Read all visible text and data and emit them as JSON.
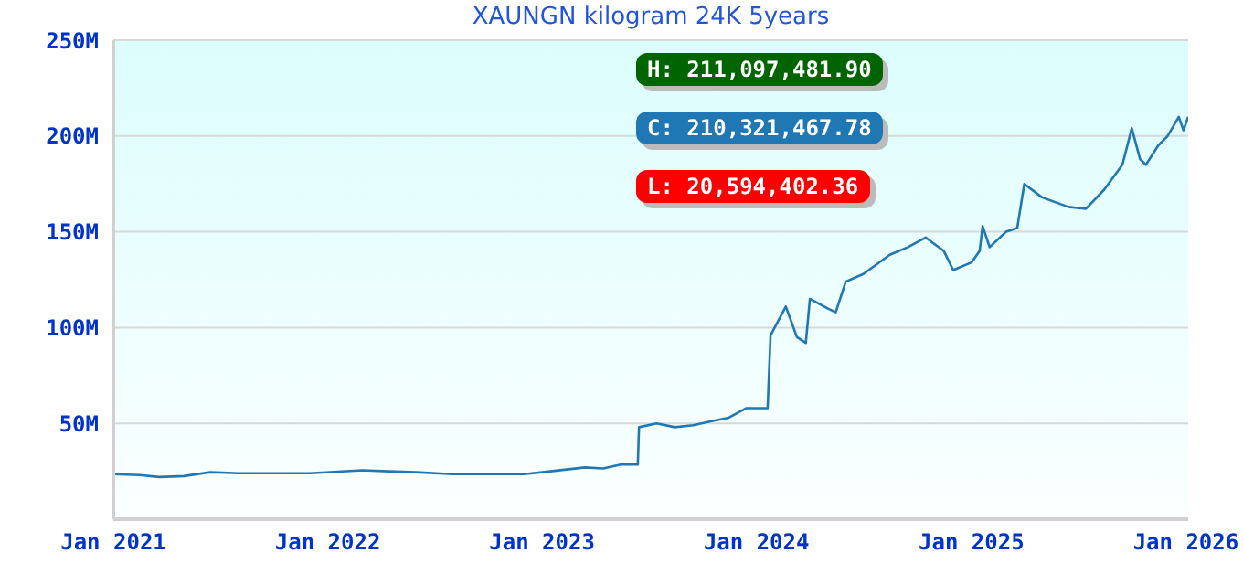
{
  "chart_data": {
    "type": "line",
    "title": "XAUNGN kilogram 24K 5years",
    "annotations": [
      "H: 211,097,481.90",
      "C: 210,321,467.78",
      "L: 20,594,402.36"
    ],
    "x": [
      "2021-01-01",
      "2021-02-15",
      "2021-03-20",
      "2021-05-01",
      "2021-06-15",
      "2021-08-01",
      "2021-10-01",
      "2021-12-01",
      "2022-03-01",
      "2022-04-15",
      "2022-06-01",
      "2022-08-01",
      "2022-10-01",
      "2022-12-01",
      "2023-01-15",
      "2023-03-15",
      "2023-04-15",
      "2023-05-15",
      "2023-06-13",
      "2023-06-15",
      "2023-07-15",
      "2023-08-15",
      "2023-09-15",
      "2023-10-15",
      "2023-11-15",
      "2023-12-15",
      "2024-01-20",
      "2024-01-25",
      "2024-02-20",
      "2024-03-10",
      "2024-03-25",
      "2024-04-01",
      "2024-05-01",
      "2024-05-15",
      "2024-06-01",
      "2024-07-01",
      "2024-08-15",
      "2024-09-15",
      "2024-10-15",
      "2024-11-15",
      "2024-12-01",
      "2025-01-01",
      "2025-01-15",
      "2025-01-20",
      "2025-02-01",
      "2025-03-01",
      "2025-03-20",
      "2025-04-01",
      "2025-05-01",
      "2025-06-15",
      "2025-07-15",
      "2025-08-15",
      "2025-09-15",
      "2025-10-01",
      "2025-10-15",
      "2025-10-25",
      "2025-11-15",
      "2025-12-01",
      "2025-12-20",
      "2025-12-28",
      "2026-01-05"
    ],
    "series": [
      {
        "color": "#1f77b4",
        "values": [
          23.5,
          23,
          22,
          22.5,
          24.5,
          24,
          24,
          24,
          25.5,
          25,
          24.5,
          23.5,
          23.5,
          23.5,
          25,
          27,
          26.5,
          28.5,
          28.5,
          48,
          50,
          48,
          49,
          51,
          53,
          58,
          58,
          96,
          111,
          95,
          92,
          115,
          110,
          108,
          124,
          128,
          138,
          142,
          147,
          140,
          130,
          134,
          140,
          153,
          142,
          150,
          152,
          175,
          168,
          163,
          162,
          172,
          185,
          204,
          188,
          185,
          195,
          200,
          210,
          203,
          210
        ]
      }
    ],
    "xlim": [
      "2021-01-01",
      "2026-01-05"
    ],
    "xticks": [
      {
        "value": "2021-01-01",
        "label": "Jan 2021"
      },
      {
        "value": "2022-01-01",
        "label": "Jan 2022"
      },
      {
        "value": "2023-01-01",
        "label": "Jan 2023"
      },
      {
        "value": "2024-01-01",
        "label": "Jan 2024"
      },
      {
        "value": "2025-01-01",
        "label": "Jan 2025"
      },
      {
        "value": "2026-01-01",
        "label": "Jan 2026"
      }
    ],
    "ylim": [
      0,
      250
    ],
    "yticks": [
      {
        "value": 0,
        "label": null
      },
      {
        "value": 50,
        "label": "50M"
      },
      {
        "value": 100,
        "label": "100M"
      },
      {
        "value": 150,
        "label": "150M"
      },
      {
        "value": 200,
        "label": "200M"
      },
      {
        "value": 250,
        "label": "250M"
      }
    ],
    "grid": "y",
    "marker": "none",
    "line_style": "solid"
  }
}
